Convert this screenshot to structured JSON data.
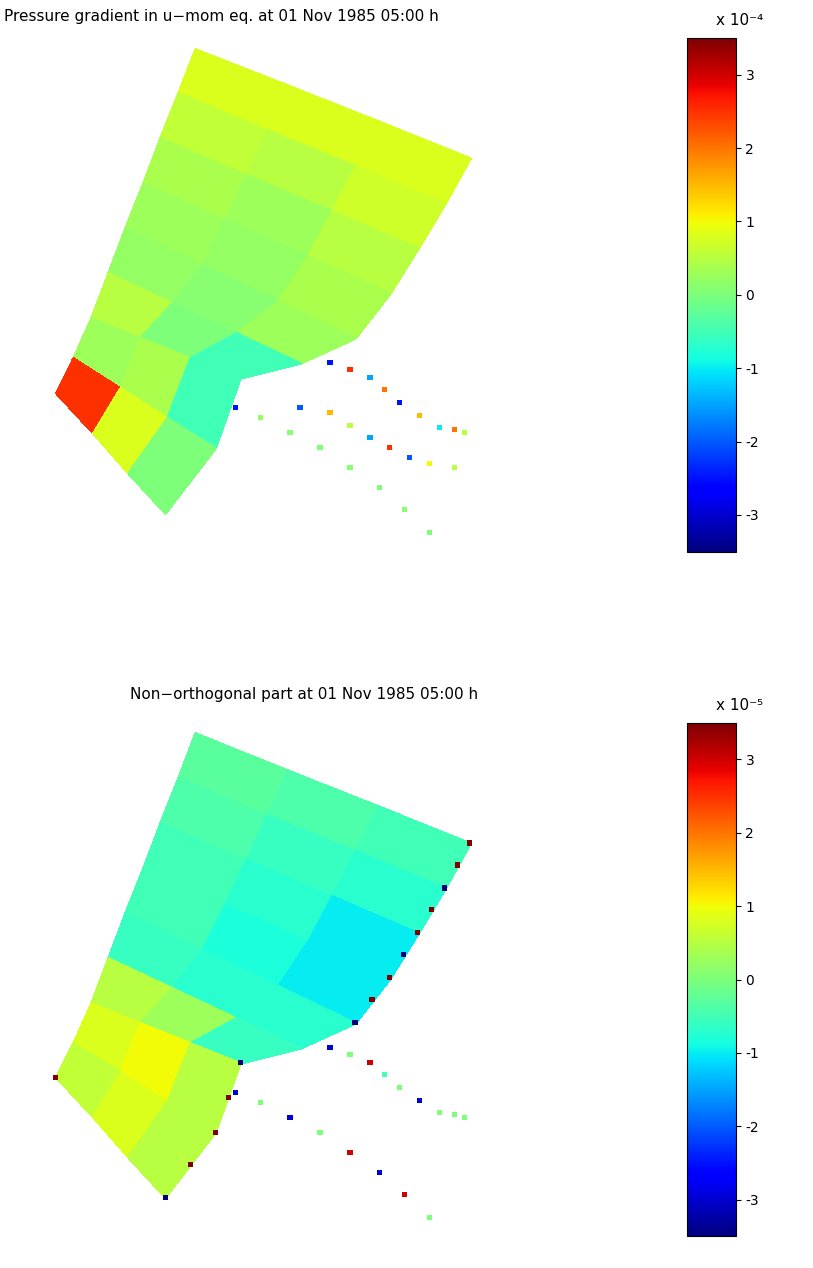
{
  "grid": {
    "x": [
      [
        195,
        287,
        378,
        470
      ],
      [
        178,
        267,
        356,
        445
      ],
      [
        160,
        246,
        332,
        418
      ],
      [
        143,
        225,
        308,
        390
      ],
      [
        125,
        202,
        278,
        355
      ],
      [
        108,
        172,
        236,
        300
      ],
      [
        90,
        140,
        190,
        240
      ],
      [
        72,
        120,
        167,
        215
      ],
      [
        55,
        92,
        128,
        165
      ]
    ],
    "y": [
      [
        30,
        67,
        103,
        140
      ],
      [
        75,
        112,
        148,
        185
      ],
      [
        120,
        157,
        193,
        230
      ],
      [
        165,
        202,
        238,
        275
      ],
      [
        210,
        247,
        283,
        320
      ],
      [
        255,
        285,
        315,
        345
      ],
      [
        300,
        320,
        340,
        360
      ],
      [
        340,
        370,
        400,
        430
      ],
      [
        375,
        415,
        455,
        495
      ]
    ]
  },
  "chart_data": [
    {
      "type": "heatmap",
      "title": "Pressure gradient in u−mom eq. at 01 Nov 1985 05:00 h",
      "tick_labels": false,
      "xlim": [
        40,
        480
      ],
      "ylim": [
        540,
        20
      ],
      "cells": [
        [
          0.8,
          0.8,
          0.8
        ],
        [
          0.6,
          0.5,
          0.7
        ],
        [
          0.4,
          0.3,
          0.5
        ],
        [
          0.3,
          0.2,
          0.4
        ],
        [
          0.2,
          0.1,
          0.3
        ],
        [
          0.5,
          0.0,
          -0.5
        ],
        [
          0.3,
          0.4,
          -0.5
        ],
        [
          2.5,
          0.8,
          0.0
        ]
      ],
      "color_range": [
        -3.5,
        3.5
      ],
      "color_ticks": [
        -3,
        -2,
        -1,
        0,
        1,
        2,
        3
      ],
      "color_label": "x 10⁻⁴",
      "lines": [
        {
          "x": [
            330,
            350,
            370,
            385,
            400,
            420,
            440,
            455,
            465
          ],
          "y": [
            345,
            352,
            360,
            372,
            385,
            398,
            410,
            412,
            415
          ],
          "values": [
            -2.5,
            2.5,
            -1.5,
            2.0,
            -2.5,
            1.5,
            -1.0,
            2.0,
            0.5
          ]
        },
        {
          "x": [
            300,
            330,
            350,
            370,
            390,
            410,
            430,
            455
          ],
          "y": [
            390,
            395,
            408,
            420,
            430,
            440,
            446,
            450
          ],
          "values": [
            -2.0,
            1.5,
            0.5,
            -1.5,
            2.5,
            -2.0,
            1.0,
            0.5
          ]
        },
        {
          "x": [
            235,
            260,
            290,
            320,
            350,
            380,
            405,
            430
          ],
          "y": [
            390,
            400,
            415,
            430,
            450,
            470,
            492,
            515
          ],
          "values": [
            -2.5,
            0.2,
            0.1,
            0.0,
            0.1,
            0.0,
            0.1,
            0.0
          ]
        }
      ]
    },
    {
      "type": "heatmap",
      "title": "Non−orthogonal part at 01 Nov 1985 05:00 h",
      "tick_labels": false,
      "xlim": [
        40,
        480
      ],
      "ylim": [
        540,
        20
      ],
      "cells": [
        [
          -0.3,
          -0.4,
          -0.5
        ],
        [
          -0.4,
          -0.6,
          -0.7
        ],
        [
          -0.5,
          -0.7,
          -1.0
        ],
        [
          -0.5,
          -0.8,
          -1.0
        ],
        [
          -0.6,
          -0.7,
          -0.7
        ],
        [
          0.5,
          0.3,
          -0.6
        ],
        [
          0.8,
          1.0,
          0.5
        ],
        [
          0.6,
          0.8,
          0.5
        ]
      ],
      "color_range": [
        -3.5,
        3.5
      ],
      "color_ticks": [
        -3,
        -2,
        -1,
        0,
        1,
        2,
        3
      ],
      "color_label": "x 10⁻⁵",
      "lines": [
        {
          "x": [
            470,
            458,
            445,
            432,
            418,
            404,
            390,
            372,
            355
          ],
          "y": [
            140,
            162,
            185,
            207,
            230,
            252,
            275,
            297,
            320
          ],
          "values": [
            3.5,
            3.5,
            -3.5,
            3.5,
            3.5,
            -3.5,
            3.5,
            3.5,
            -3.5
          ]
        },
        {
          "x": [
            240,
            228,
            215,
            190,
            165,
            55
          ],
          "y": [
            360,
            395,
            430,
            462,
            495,
            375
          ],
          "values": [
            -3.5,
            3.5,
            3.5,
            3.5,
            -3.5,
            3.5
          ]
        },
        {
          "x": [
            330,
            350,
            370,
            385,
            400,
            420,
            440,
            455,
            465
          ],
          "y": [
            345,
            352,
            360,
            372,
            385,
            398,
            410,
            412,
            415
          ],
          "values": [
            -3.0,
            0.0,
            3.0,
            -0.5,
            0.0,
            -3.0,
            0.0,
            0.0,
            0.0
          ]
        },
        {
          "x": [
            235,
            260,
            290,
            320,
            350,
            380,
            405,
            430
          ],
          "y": [
            390,
            400,
            415,
            430,
            450,
            470,
            492,
            515
          ],
          "values": [
            -3.0,
            0.0,
            -3.0,
            0.0,
            3.0,
            -3.0,
            3.0,
            0.0
          ]
        }
      ]
    }
  ]
}
